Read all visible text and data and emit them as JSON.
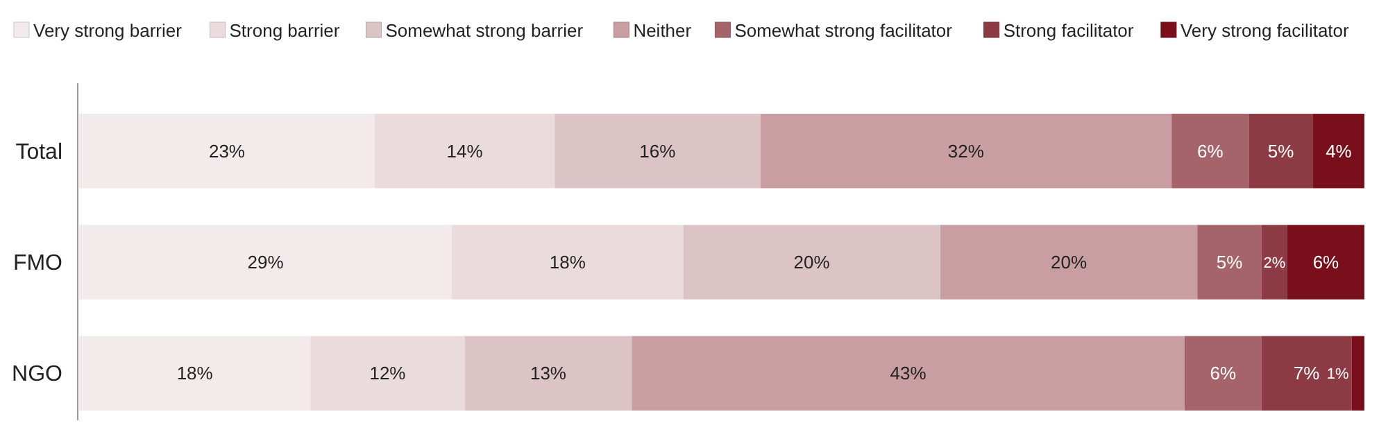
{
  "chart_data": {
    "type": "bar",
    "orientation": "horizontal",
    "stacked": true,
    "categories": [
      "Total",
      "FMO",
      "NGO"
    ],
    "tick_labels": "y",
    "legend": "top",
    "series": [
      {
        "name": "Very strong barrier",
        "color": "#f2eaeb",
        "values": [
          23,
          29,
          18
        ],
        "value_labels": [
          "23%",
          "29%",
          "18%"
        ]
      },
      {
        "name": "Strong barrier",
        "color": "#eadcdd",
        "values": [
          14,
          18,
          12
        ],
        "value_labels": [
          "14%",
          "18%",
          "12%"
        ]
      },
      {
        "name": "Somewhat strong barrier",
        "color": "#dcc4c6",
        "values": [
          16,
          20,
          13
        ],
        "value_labels": [
          "16%",
          "20%",
          "13%"
        ]
      },
      {
        "name": "Neither",
        "color": "#c89ea2",
        "values": [
          32,
          20,
          43
        ],
        "value_labels": [
          "32%",
          "20%",
          "43%"
        ]
      },
      {
        "name": "Somewhat strong facilitator",
        "color": "#a5646a",
        "values": [
          6,
          5,
          6
        ],
        "value_labels": [
          "6%",
          "5%",
          "6%"
        ]
      },
      {
        "name": "Strong facilitator",
        "color": "#8c3a44",
        "values": [
          5,
          2,
          7
        ],
        "value_labels": [
          "5%",
          "2%",
          "7%"
        ]
      },
      {
        "name": "Very strong facilitator",
        "color": "#7a0f1c",
        "values": [
          4,
          6,
          1
        ],
        "value_labels": [
          "4%",
          "6%",
          "1%"
        ]
      }
    ]
  }
}
